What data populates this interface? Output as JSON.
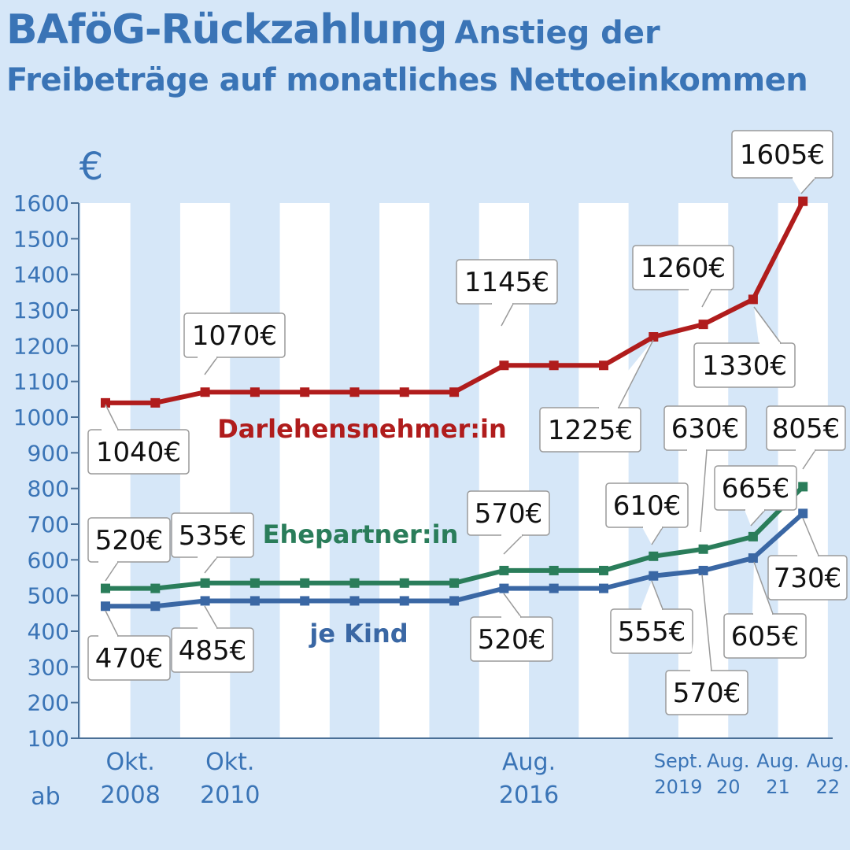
{
  "header": {
    "title": "BAföG-Rückzahlung",
    "subtitle_line1": "Anstieg der",
    "subtitle_line2": "Freibeträge auf monatliches Nettoeinkommen"
  },
  "chart_data": {
    "type": "line",
    "ylabel": "€",
    "xprefix": "ab",
    "ylim": [
      100,
      1600
    ],
    "yticks": [
      1600,
      1500,
      1400,
      1300,
      1200,
      1100,
      1000,
      900,
      800,
      700,
      600,
      500,
      400,
      300,
      200,
      100
    ],
    "x_labels": [
      {
        "index": 0.5,
        "lines": [
          "Okt.",
          "2008"
        ],
        "small": false
      },
      {
        "index": 2.5,
        "lines": [
          "Okt.",
          "2010"
        ],
        "small": false
      },
      {
        "index": 8.5,
        "lines": [
          "Aug.",
          "2016"
        ],
        "small": false
      },
      {
        "index": 11.5,
        "lines": [
          "Sept.",
          "2019"
        ],
        "small": true
      },
      {
        "index": 12.5,
        "lines": [
          "Aug.",
          "20"
        ],
        "small": true
      },
      {
        "index": 13.5,
        "lines": [
          "Aug.",
          "21"
        ],
        "small": true
      },
      {
        "index": 14.5,
        "lines": [
          "Aug.",
          "22"
        ],
        "small": true
      }
    ],
    "series": [
      {
        "name": "Darlehensnehmer:in",
        "color": "#b01c1c",
        "values": [
          1040,
          1040,
          1070,
          1070,
          1070,
          1070,
          1070,
          1070,
          1145,
          1145,
          1145,
          1225,
          1260,
          1330,
          1605
        ],
        "labels": [
          {
            "index": 0,
            "text": "1040€"
          },
          {
            "index": 2,
            "text": "1070€"
          },
          {
            "index": 8,
            "text": "1145€"
          },
          {
            "index": 11,
            "text": "1225€"
          },
          {
            "index": 12,
            "text": "1260€"
          },
          {
            "index": 13,
            "text": "1330€"
          },
          {
            "index": 14,
            "text": "1605€"
          }
        ]
      },
      {
        "name": "Ehepartner:in",
        "color": "#2a7d5a",
        "values": [
          520,
          520,
          535,
          535,
          535,
          535,
          535,
          535,
          570,
          570,
          570,
          610,
          630,
          665,
          805
        ],
        "labels": [
          {
            "index": 0,
            "text": "520€"
          },
          {
            "index": 2,
            "text": "535€"
          },
          {
            "index": 8,
            "text": "570€"
          },
          {
            "index": 11,
            "text": "610€"
          },
          {
            "index": 12,
            "text": "630€"
          },
          {
            "index": 13,
            "text": "665€"
          },
          {
            "index": 14,
            "text": "805€"
          }
        ]
      },
      {
        "name": "je  Kind",
        "color": "#3a67a4",
        "values": [
          470,
          470,
          485,
          485,
          485,
          485,
          485,
          485,
          520,
          520,
          520,
          555,
          570,
          605,
          730
        ],
        "labels": [
          {
            "index": 0,
            "text": "470€"
          },
          {
            "index": 2,
            "text": "485€"
          },
          {
            "index": 8,
            "text": "520€"
          },
          {
            "index": 11,
            "text": "555€"
          },
          {
            "index": 12,
            "text": "570€"
          },
          {
            "index": 13,
            "text": "605€"
          },
          {
            "index": 14,
            "text": "730€"
          }
        ]
      }
    ]
  }
}
